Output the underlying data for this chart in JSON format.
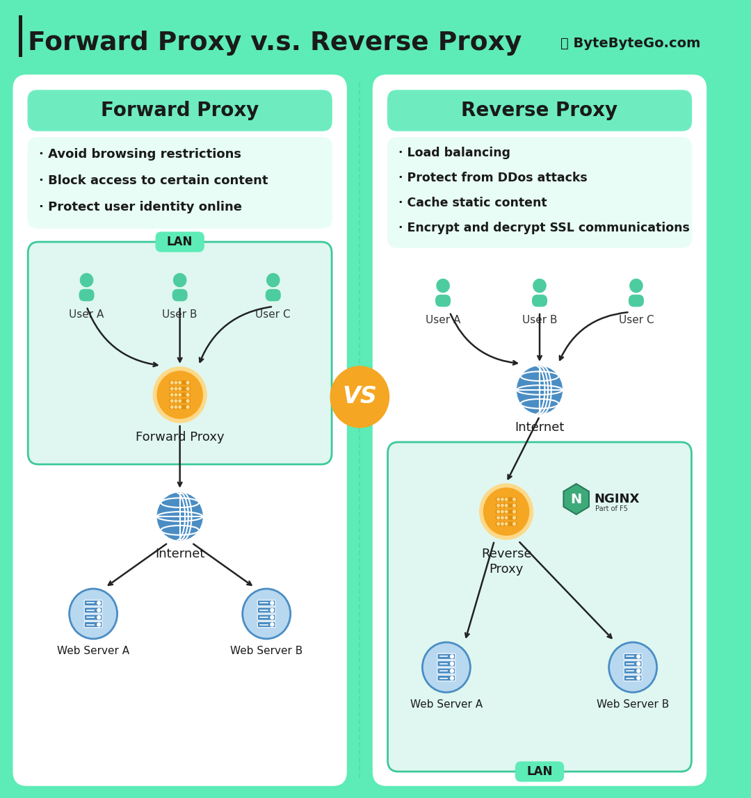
{
  "title": "Forward Proxy v.s. Reverse Proxy",
  "byline": "Ⓣ ByteByteGo.com",
  "bg_color": "#5DEBB7",
  "card_bg": "#ffffff",
  "teal_color": "#5DEBB7",
  "teal_light": "#c8f5e6",
  "teal_lighter": "#dff7f0",
  "teal_dark": "#3CC99A",
  "panel_header_bg": "#6EECC0",
  "panel_body_bg": "#e8fdf5",
  "forward_title": "Forward Proxy",
  "reverse_title": "Reverse Proxy",
  "forward_bullets": [
    "· Avoid browsing restrictions",
    "· Block access to certain content",
    "· Protect user identity online"
  ],
  "reverse_bullets": [
    "· Load balancing",
    "· Protect from DDos attacks",
    "· Cache static content",
    "· Encrypt and decrypt SSL communications"
  ],
  "orange": "#F5A623",
  "orange_light": "#FDD98A",
  "orange_dark": "#E09010",
  "blue_icon": "#4A8DC4",
  "blue_light": "#B8D8F0",
  "blue_dark": "#2C5E9E",
  "user_color": "#4DCCA0",
  "nginx_green": "#3DAA7A",
  "nginx_dark": "#2A7A58",
  "vs_bg": "#F5A623",
  "vs_text": "#ffffff",
  "arrow_color": "#222222",
  "text_dark": "#1a1a1a",
  "text_mid": "#333333"
}
